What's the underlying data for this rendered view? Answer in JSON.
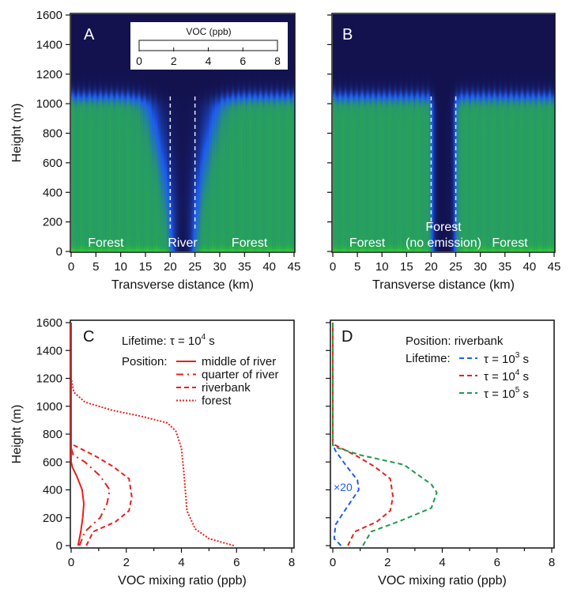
{
  "colors": {
    "navy": "#13124f",
    "river_line": "#ffffff",
    "red": "#e8201c",
    "blue": "#1f5cf0",
    "green": "#1f9a4a"
  },
  "chart_data": [
    {
      "type": "heatmap",
      "panel": "A",
      "xlabel": "Transverse distance (km)",
      "ylabel": "Height (m)",
      "xlim": [
        0,
        45
      ],
      "ylim": [
        0,
        1600
      ],
      "xticks": [
        "0",
        "5",
        "10",
        "15",
        "20",
        "25",
        "30",
        "35",
        "40",
        "45"
      ],
      "yticks": [
        "0",
        "200",
        "400",
        "600",
        "800",
        "1000",
        "1200",
        "1400",
        "1600"
      ],
      "colorbar": {
        "title": "VOC (ppb)",
        "range": [
          0,
          8
        ],
        "ticks": [
          "0",
          "2",
          "4",
          "6",
          "8"
        ],
        "colormap": [
          "#13124f",
          "#1e5cf0",
          "#27a35a",
          "#35d030",
          "#f0c828"
        ]
      },
      "river_bounds_km": [
        20,
        25
      ],
      "region_labels": [
        "Forest",
        "River",
        "Forest"
      ],
      "forest_value_ppb": 4,
      "boundary_layer_top_m": 1030
    },
    {
      "type": "heatmap",
      "panel": "B",
      "xlabel": "Transverse distance (km)",
      "xlim": [
        0,
        45
      ],
      "ylim": [
        0,
        1600
      ],
      "xticks": [
        "0",
        "5",
        "10",
        "15",
        "20",
        "25",
        "30",
        "35",
        "40",
        "45"
      ],
      "river_bounds_km": [
        20,
        25
      ],
      "region_labels": [
        "Forest",
        "Forest\n(no emission)",
        "Forest"
      ],
      "forest_value_ppb": 4,
      "boundary_layer_top_m": 1030
    },
    {
      "type": "line",
      "panel": "C",
      "xlabel": "VOC mixing ratio (ppb)",
      "ylabel": "Height (m)",
      "xlim": [
        0,
        8
      ],
      "ylim": [
        0,
        1600
      ],
      "xticks": [
        "0",
        "2",
        "4",
        "6",
        "8"
      ],
      "yticks": [
        "0",
        "200",
        "400",
        "600",
        "800",
        "1000",
        "1200",
        "1400",
        "1600"
      ],
      "annotation": {
        "prefix": "Lifetime: τ = 10",
        "exp": "4",
        "suffix": " s"
      },
      "legend_title": "Position:",
      "series": [
        {
          "name": "middle of river",
          "color": "#e8201c",
          "style": "solid",
          "x": [
            0.25,
            0.35,
            0.42,
            0.46,
            0.4,
            0.2,
            0.05,
            0,
            0
          ],
          "y": [
            0,
            100,
            200,
            300,
            400,
            500,
            560,
            600,
            1600
          ]
        },
        {
          "name": "quarter of river",
          "color": "#e8201c",
          "style": "dash-dot",
          "x": [
            0.3,
            0.5,
            1.05,
            1.3,
            1.4,
            1.05,
            0.5,
            0.08,
            0,
            0
          ],
          "y": [
            0,
            100,
            200,
            300,
            400,
            500,
            600,
            650,
            700,
            1600
          ]
        },
        {
          "name": "riverbank",
          "color": "#e8201c",
          "style": "dash",
          "x": [
            0.55,
            0.8,
            1.6,
            2.1,
            2.2,
            2.1,
            1.5,
            0.9,
            0.3,
            0,
            0
          ],
          "y": [
            0,
            100,
            170,
            250,
            350,
            480,
            570,
            640,
            700,
            730,
            1600
          ]
        },
        {
          "name": "forest",
          "color": "#e8201c",
          "style": "dot",
          "x": [
            5.9,
            5.0,
            4.5,
            4.2,
            4.1,
            4.0,
            3.8,
            3.5,
            2.5,
            1.5,
            0.5,
            0.1,
            0,
            0
          ],
          "y": [
            0,
            50,
            120,
            250,
            500,
            700,
            820,
            880,
            930,
            970,
            1030,
            1100,
            1200,
            1600
          ]
        }
      ]
    },
    {
      "type": "line",
      "panel": "D",
      "xlabel": "VOC mixing ratio (ppb)",
      "xlim": [
        0,
        8
      ],
      "ylim": [
        0,
        1600
      ],
      "xticks": [
        "0",
        "2",
        "4",
        "6",
        "8"
      ],
      "annotation_position": "Position: riverbank",
      "legend_title": "Lifetime:",
      "scale_note": "×20",
      "series": [
        {
          "name_prefix": "τ = 10",
          "exp": "3",
          "name_suffix": " s",
          "color": "#1f5cf0",
          "style": "dash",
          "x": [
            0.3,
            0.05,
            0.1,
            0.5,
            0.95,
            0.9,
            0.5,
            0.1,
            0,
            0
          ],
          "y": [
            0,
            50,
            150,
            270,
            400,
            470,
            570,
            680,
            720,
            1600
          ]
        },
        {
          "name_prefix": "τ = 10",
          "exp": "4",
          "name_suffix": " s",
          "color": "#e8201c",
          "style": "dash",
          "x": [
            0.55,
            0.8,
            1.6,
            2.1,
            2.2,
            2.1,
            1.5,
            0.9,
            0.3,
            0,
            0
          ],
          "y": [
            0,
            100,
            170,
            250,
            350,
            480,
            570,
            640,
            700,
            730,
            1600
          ]
        },
        {
          "name_prefix": "τ = 10",
          "exp": "5",
          "name_suffix": " s",
          "color": "#1f9a4a",
          "style": "dash",
          "x": [
            1.1,
            1.4,
            2.5,
            3.6,
            3.8,
            3.6,
            2.6,
            1.0,
            0.2,
            0,
            0
          ],
          "y": [
            0,
            100,
            180,
            270,
            380,
            440,
            580,
            650,
            700,
            720,
            1600
          ]
        }
      ]
    }
  ]
}
